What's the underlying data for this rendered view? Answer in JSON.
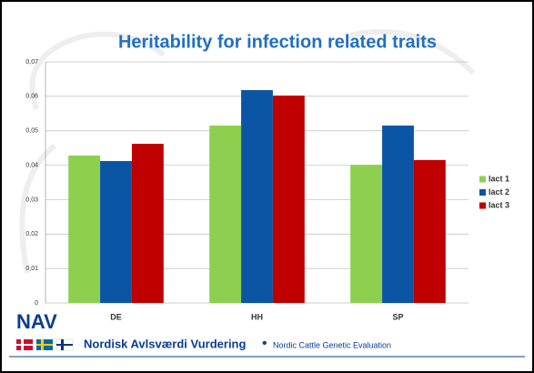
{
  "chart_data": {
    "type": "bar",
    "title": "Heritability for infection related traits",
    "categories": [
      "DE",
      "HH",
      "SP"
    ],
    "series": [
      {
        "name": "lact 1",
        "color": "#8fcf50",
        "values": [
          0.0428,
          0.0515,
          0.0401
        ]
      },
      {
        "name": "lact 2",
        "color": "#0a56a5",
        "values": [
          0.0412,
          0.0618,
          0.0515
        ]
      },
      {
        "name": "lact 3",
        "color": "#c00000",
        "values": [
          0.0462,
          0.0602,
          0.0415
        ]
      }
    ],
    "ylim": [
      0,
      0.07
    ],
    "yticks": [
      0,
      {
        "value": 0.01,
        "label": "0,01"
      },
      {
        "value": 0.02,
        "label": "0,02"
      },
      {
        "value": 0.03,
        "label": "0,03"
      },
      {
        "value": 0.04,
        "label": "0,04"
      },
      {
        "value": 0.05,
        "label": "0,05"
      },
      {
        "value": 0.06,
        "label": "0,06"
      },
      {
        "value": 0.07,
        "label": "0,07"
      }
    ],
    "grid": true,
    "legend": "right"
  },
  "footer": {
    "logo": "NAV",
    "org": "Nordisk Avlsværdi Vurdering",
    "bullet": "•",
    "subtitle": "Nordic Cattle Genetic Evaluation"
  }
}
